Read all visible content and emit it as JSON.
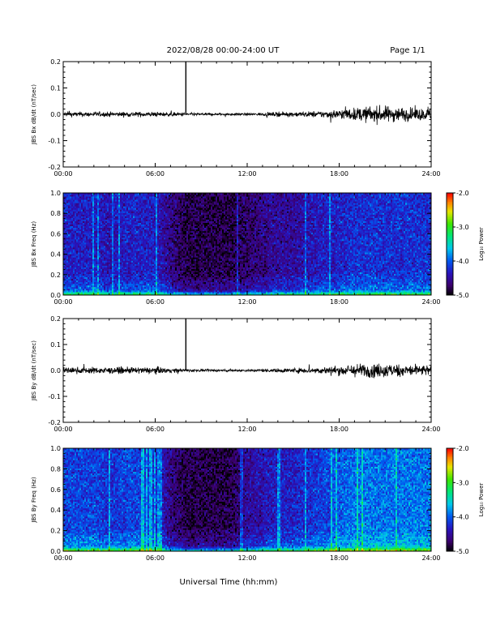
{
  "header": {
    "title": "2022/08/28  00:00-24:00 UT",
    "page": "Page 1/1"
  },
  "x_axis_title": "Universal Time (hh:mm)",
  "colorbar": {
    "label": "Log₁₀ Power",
    "ticks": [
      "-2.0",
      "-3.0",
      "-4.0",
      "-5.0"
    ],
    "range": [
      -5.0,
      -2.0
    ]
  },
  "chart_data": [
    {
      "type": "line",
      "ylabel": "JBS Bx dB/dt (nT/sec)",
      "xlim": [
        0,
        24
      ],
      "ylim": [
        -0.2,
        0.2
      ],
      "x_ticks": [
        "00:00",
        "06:00",
        "12:00",
        "18:00",
        "24:00"
      ],
      "y_ticks": [
        "0.2",
        "0.1",
        "0.0",
        "-0.1",
        "-0.2"
      ],
      "spike": {
        "x": 8.0,
        "y": 0.2
      },
      "noise_amplitude_by_hour": [
        0.006,
        0.006,
        0.006,
        0.006,
        0.006,
        0.006,
        0.006,
        0.005,
        0.004,
        0.003,
        0.003,
        0.003,
        0.003,
        0.004,
        0.005,
        0.006,
        0.007,
        0.009,
        0.012,
        0.016,
        0.02,
        0.02,
        0.018,
        0.016,
        0.014
      ]
    },
    {
      "type": "heatmap",
      "ylabel": "JBS Bx Freq (Hz)",
      "xlim": [
        0,
        24
      ],
      "ylim": [
        0.0,
        1.0
      ],
      "x_ticks": [
        "00:00",
        "06:00",
        "12:00",
        "18:00",
        "24:00"
      ],
      "y_ticks": [
        "1.0",
        "0.8",
        "0.6",
        "0.4",
        "0.2",
        "0.0"
      ],
      "zlim": [
        -5.0,
        -2.0
      ],
      "base_power_by_hour": [
        -4.3,
        -4.3,
        -4.3,
        -4.4,
        -4.3,
        -4.3,
        -4.3,
        -4.6,
        -4.8,
        -4.8,
        -4.8,
        -4.8,
        -4.7,
        -4.6,
        -4.5,
        -4.5,
        -4.4,
        -4.3,
        -4.3,
        -4.2,
        -4.2,
        -4.2,
        -4.2,
        -4.2,
        -4.2
      ]
    },
    {
      "type": "line",
      "ylabel": "JBS By dB/dt (nT/sec)",
      "xlim": [
        0,
        24
      ],
      "ylim": [
        -0.2,
        0.2
      ],
      "x_ticks": [
        "00:00",
        "06:00",
        "12:00",
        "18:00",
        "24:00"
      ],
      "y_ticks": [
        "0.2",
        "0.1",
        "0.0",
        "-0.1",
        "-0.2"
      ],
      "spike": {
        "x": 8.0,
        "y": 0.2
      },
      "noise_amplitude_by_hour": [
        0.008,
        0.008,
        0.008,
        0.008,
        0.008,
        0.008,
        0.008,
        0.006,
        0.004,
        0.003,
        0.003,
        0.003,
        0.003,
        0.004,
        0.005,
        0.006,
        0.007,
        0.009,
        0.012,
        0.016,
        0.018,
        0.018,
        0.016,
        0.014,
        0.013
      ]
    },
    {
      "type": "heatmap",
      "ylabel": "JBS By Freq (Hz)",
      "xlim": [
        0,
        24
      ],
      "ylim": [
        0.0,
        1.0
      ],
      "x_ticks": [
        "00:00",
        "06:00",
        "12:00",
        "18:00",
        "24:00"
      ],
      "y_ticks": [
        "1.0",
        "0.8",
        "0.6",
        "0.4",
        "0.2",
        "0.0"
      ],
      "zlim": [
        -5.0,
        -2.0
      ],
      "base_power_by_hour": [
        -4.1,
        -4.1,
        -4.1,
        -4.2,
        -4.1,
        -4.1,
        -4.2,
        -4.6,
        -4.8,
        -4.8,
        -4.8,
        -4.8,
        -4.5,
        -4.4,
        -4.3,
        -4.3,
        -4.2,
        -4.1,
        -4.0,
        -3.9,
        -3.9,
        -3.9,
        -3.9,
        -3.9,
        -3.9
      ]
    }
  ]
}
